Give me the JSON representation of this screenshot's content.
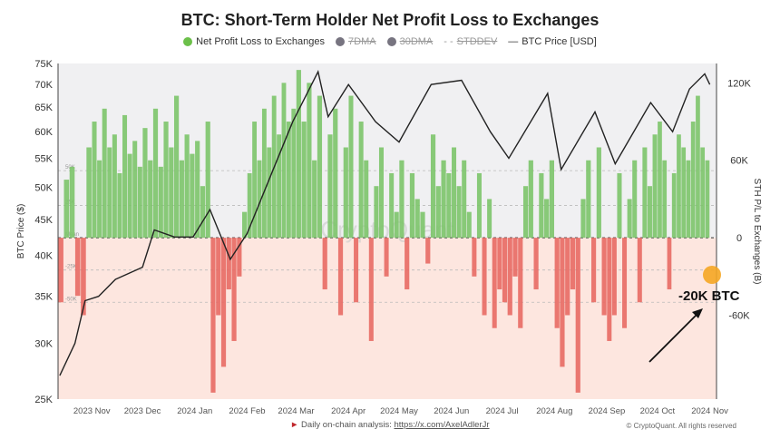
{
  "chart_data": {
    "type": "bar+line",
    "title": "BTC: Short-Term Holder Net Profit Loss to Exchanges",
    "legend": [
      {
        "label": "Net Profit Loss to Exchanges",
        "color": "#6cc04a",
        "active": true
      },
      {
        "label": "7DMA",
        "color": "#777480",
        "active": false
      },
      {
        "label": "30DMA",
        "color": "#777480",
        "active": false
      },
      {
        "label": "STDDEV",
        "color": "#999999",
        "active": false
      },
      {
        "label": "BTC Price [USD]",
        "color": "#222222",
        "active": true
      }
    ],
    "y_left": {
      "label": "BTC Price ($)",
      "scale": "log",
      "range": [
        25000,
        75000
      ],
      "ticks": [
        "25K",
        "30K",
        "35K",
        "40K",
        "45K",
        "50K",
        "55K",
        "60K",
        "65K",
        "70K",
        "75K"
      ],
      "tick_values": [
        25000,
        30000,
        35000,
        40000,
        45000,
        50000,
        55000,
        60000,
        65000,
        70000,
        75000
      ]
    },
    "y_right": {
      "label": "STH P/L to Exchanges (B)",
      "range": [
        -125000,
        135000
      ],
      "ticks": [
        "120K",
        "60K",
        "0",
        "-60K"
      ],
      "tick_values": [
        120000,
        60000,
        0,
        -60000
      ]
    },
    "x_ticks": [
      "2023 Nov",
      "2023 Dec",
      "2024 Jan",
      "2024 Feb",
      "2024 Mar",
      "2024 Apr",
      "2024 May",
      "2024 Jun",
      "2024 Jul",
      "2024 Aug",
      "2024 Sep",
      "2024 Oct",
      "2024 Nov"
    ],
    "x_tick_dates": [
      "2023-11-01",
      "2023-12-01",
      "2024-01-01",
      "2024-02-01",
      "2024-03-01",
      "2024-04-01",
      "2024-05-01",
      "2024-06-01",
      "2024-07-01",
      "2024-08-01",
      "2024-09-01",
      "2024-10-01",
      "2024-11-01"
    ],
    "x_range": [
      "2023-10-12",
      "2024-11-05"
    ],
    "bands": [
      {
        "label": "50K",
        "value": 52000
      },
      {
        "label": "25K",
        "value": 25000
      },
      {
        "label": "Mean",
        "value": 0
      },
      {
        "label": "-25K",
        "value": -25000
      },
      {
        "label": "-50K",
        "value": -50000
      }
    ],
    "profit_loss_by_month": {
      "2023-10": [
        -50,
        45,
        55,
        -45,
        -60,
        70
      ],
      "2023-11": [
        90,
        60,
        100,
        70,
        80,
        50,
        95,
        65,
        75,
        55
      ],
      "2023-12": [
        85,
        60,
        100,
        55,
        90,
        70,
        110,
        60,
        80,
        65
      ],
      "2024-01": [
        75,
        40,
        90,
        -120,
        -60,
        -100,
        -40,
        -80,
        -30,
        20
      ],
      "2024-02": [
        50,
        90,
        60,
        100,
        70,
        110,
        80,
        120,
        90,
        100
      ],
      "2024-03": [
        130,
        90,
        120,
        60,
        110,
        -40,
        80,
        100,
        -60,
        70
      ],
      "2024-04": [
        110,
        -50,
        90,
        60,
        -80,
        40,
        70,
        -30,
        50,
        20
      ],
      "2024-05": [
        60,
        -40,
        50,
        30,
        20,
        -20,
        80,
        40,
        60,
        50
      ],
      "2024-06": [
        70,
        40,
        60,
        20,
        -30,
        50,
        -60,
        30,
        -70,
        -40
      ],
      "2024-07": [
        -50,
        -60,
        -30,
        -70,
        40,
        60,
        -40,
        50,
        30,
        60
      ],
      "2024-08": [
        -70,
        -100,
        -60,
        -40,
        -120,
        30,
        60,
        -50,
        70,
        -60
      ],
      "2024-09": [
        -80,
        -60,
        50,
        -70,
        30,
        60,
        -50,
        70,
        40,
        80
      ],
      "2024-10": [
        90,
        60,
        -40,
        50,
        80,
        70,
        60,
        90,
        110,
        70,
        60
      ]
    },
    "profit_loss_unit": "thousand BTC",
    "btc_price": [
      [
        "2023-10-13",
        27000
      ],
      [
        "2023-10-22",
        30000
      ],
      [
        "2023-10-28",
        34500
      ],
      [
        "2023-11-05",
        35000
      ],
      [
        "2023-11-15",
        37000
      ],
      [
        "2023-12-01",
        38500
      ],
      [
        "2023-12-08",
        43500
      ],
      [
        "2023-12-20",
        42500
      ],
      [
        "2023-12-31",
        42500
      ],
      [
        "2024-01-10",
        46500
      ],
      [
        "2024-01-22",
        39500
      ],
      [
        "2024-02-01",
        43000
      ],
      [
        "2024-02-15",
        52000
      ],
      [
        "2024-02-28",
        62000
      ],
      [
        "2024-03-14",
        73000
      ],
      [
        "2024-03-20",
        63000
      ],
      [
        "2024-04-01",
        70000
      ],
      [
        "2024-04-17",
        62000
      ],
      [
        "2024-05-01",
        58000
      ],
      [
        "2024-05-20",
        70000
      ],
      [
        "2024-06-07",
        71000
      ],
      [
        "2024-06-24",
        60000
      ],
      [
        "2024-07-05",
        55000
      ],
      [
        "2024-07-28",
        68000
      ],
      [
        "2024-08-05",
        53000
      ],
      [
        "2024-08-25",
        64000
      ],
      [
        "2024-09-06",
        54000
      ],
      [
        "2024-09-27",
        66000
      ],
      [
        "2024-10-10",
        60000
      ],
      [
        "2024-10-20",
        69000
      ],
      [
        "2024-10-29",
        72500
      ],
      [
        "2024-11-01",
        70000
      ]
    ],
    "annotation": "-20K BTC",
    "watermark": "CryptoQuant"
  },
  "footer": {
    "text": "Daily on-chain analysis: ",
    "link": "https://x.com/AxelAdlerJr",
    "copyright": "© CryptoQuant. All rights reserved"
  }
}
